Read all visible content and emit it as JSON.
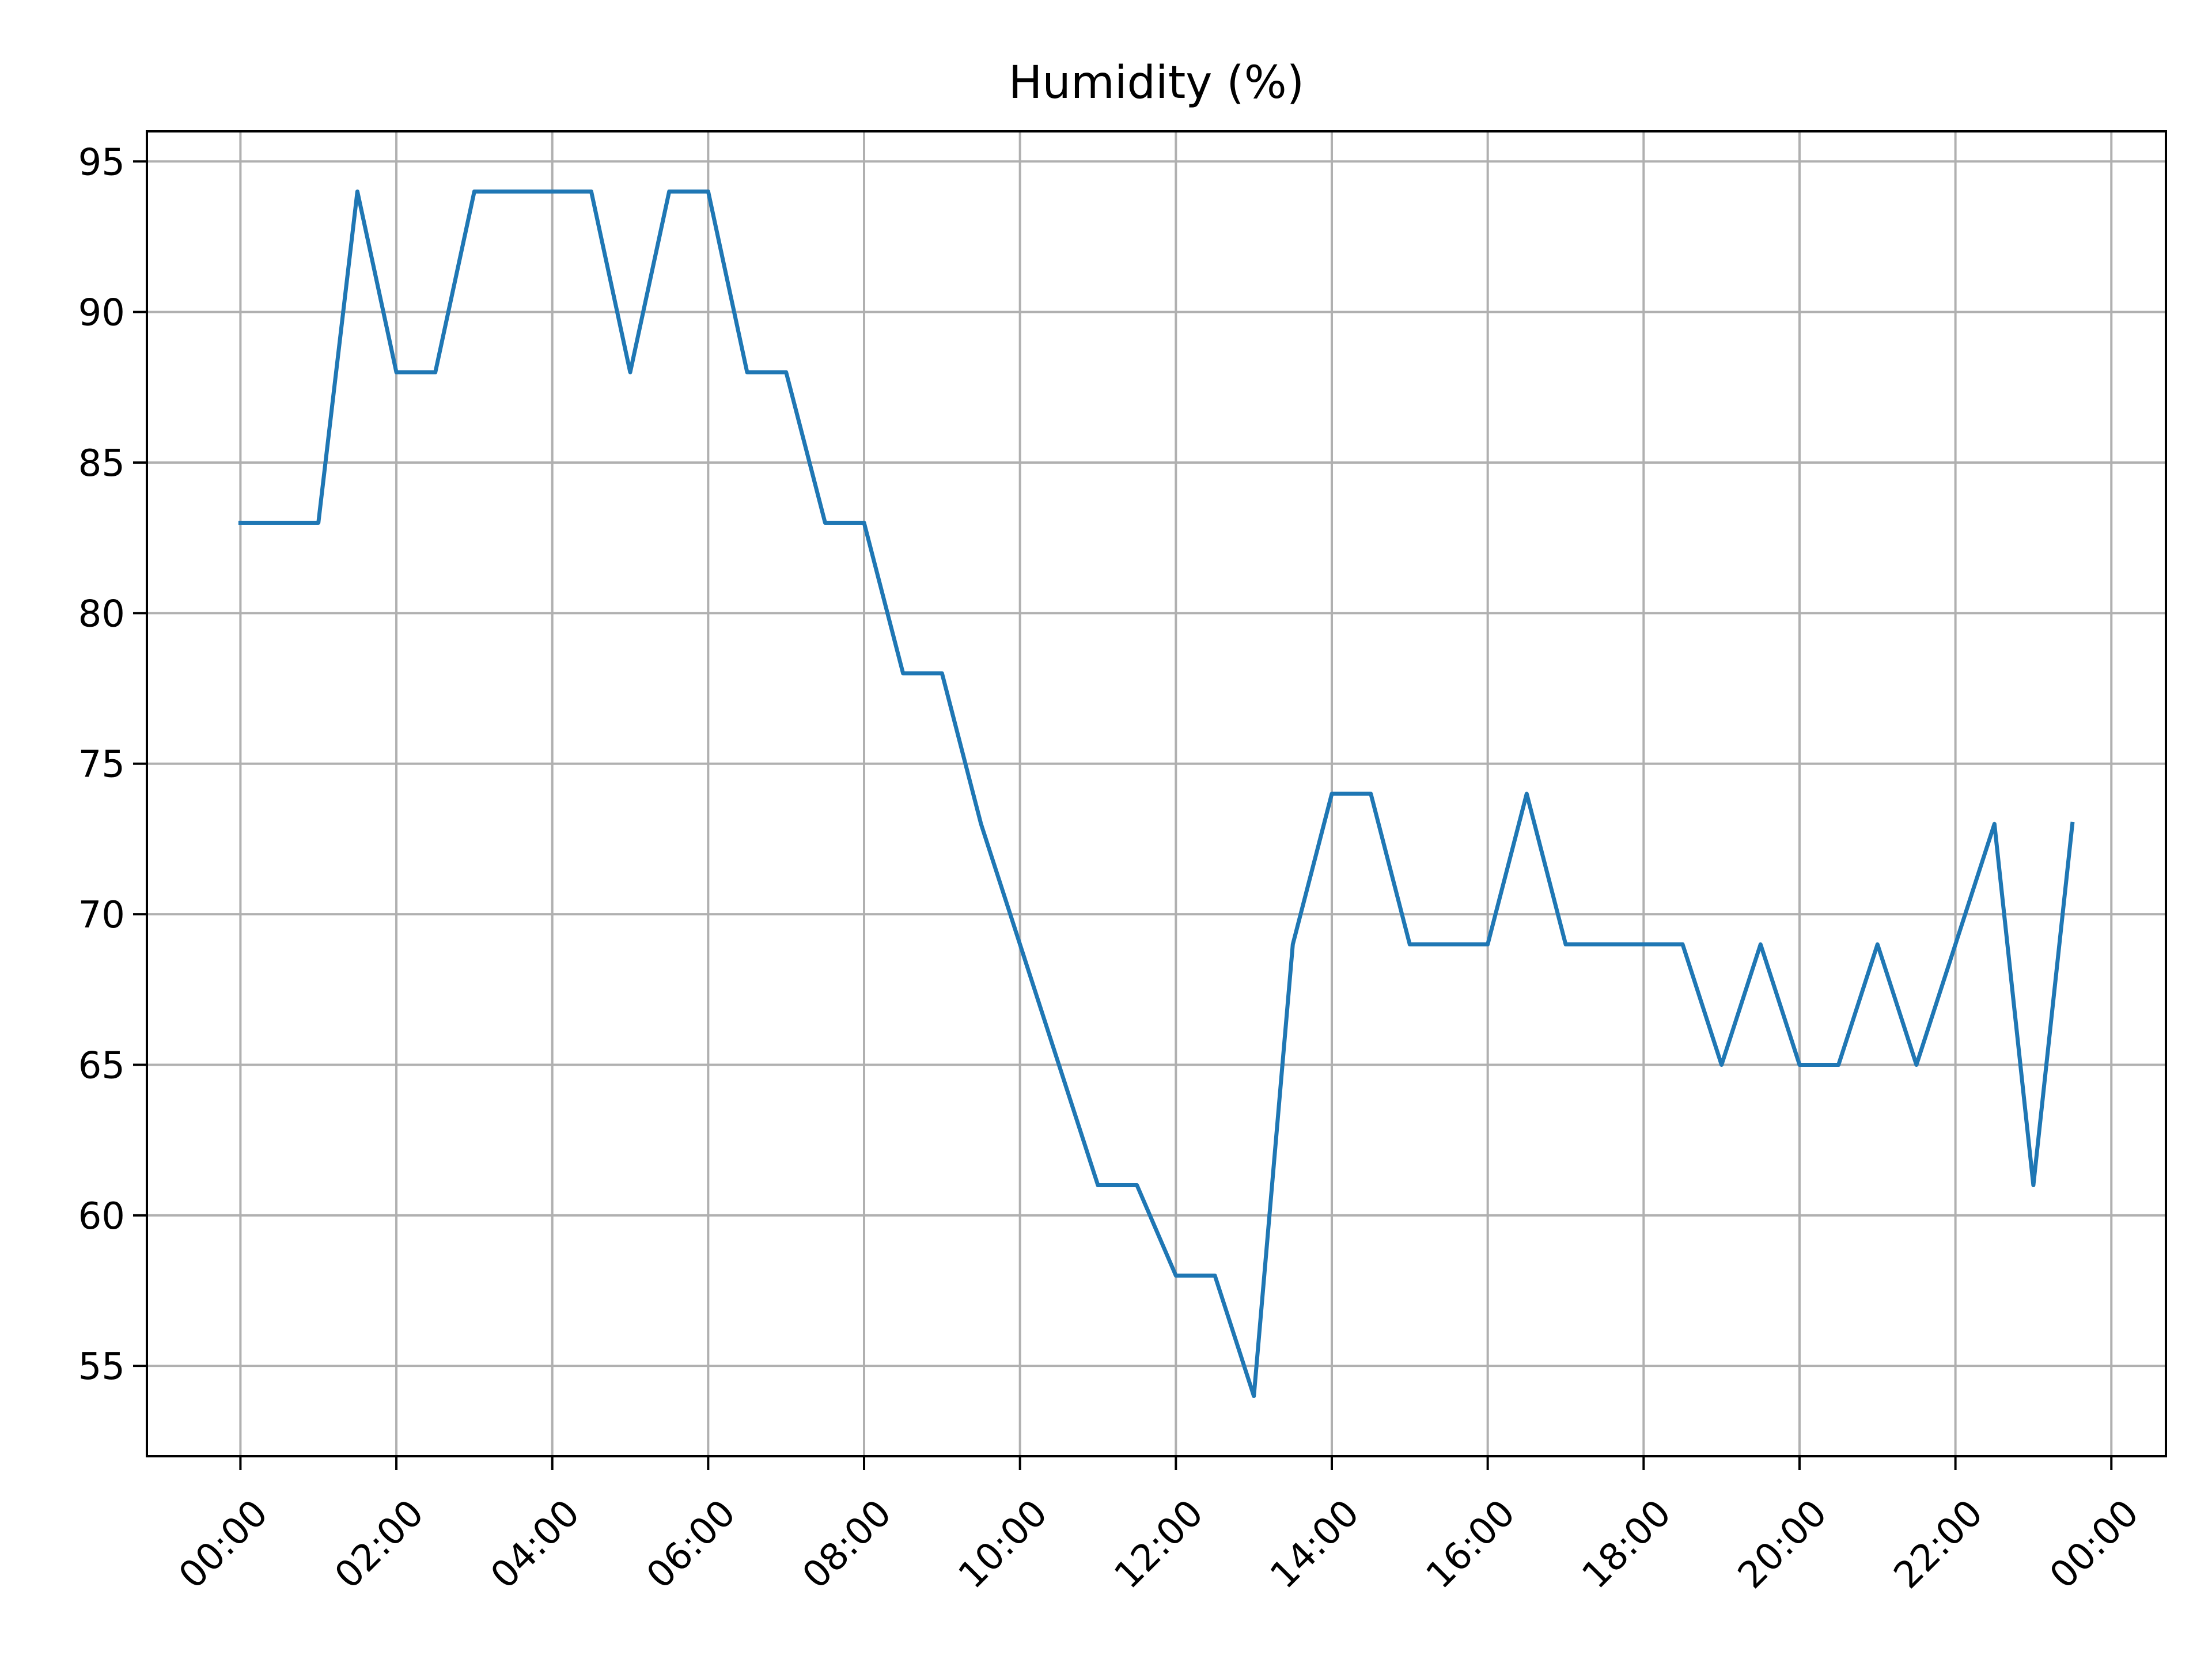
{
  "chart_data": {
    "type": "line",
    "title": "Humidity (%)",
    "xlabel": "",
    "ylabel": "",
    "x_unit": "hours",
    "xlim": [
      -1.2,
      24.7
    ],
    "ylim": [
      52,
      96
    ],
    "grid": true,
    "legend": "none",
    "x_ticks": [
      0,
      2,
      4,
      6,
      8,
      10,
      12,
      14,
      16,
      18,
      20,
      22,
      24
    ],
    "x_tick_labels": [
      "00:00",
      "02:00",
      "04:00",
      "06:00",
      "08:00",
      "10:00",
      "12:00",
      "14:00",
      "16:00",
      "18:00",
      "20:00",
      "22:00",
      "00:00"
    ],
    "y_ticks": [
      55,
      60,
      65,
      70,
      75,
      80,
      85,
      90,
      95
    ],
    "y_tick_labels": [
      "55",
      "60",
      "65",
      "70",
      "75",
      "80",
      "85",
      "90",
      "95"
    ],
    "series": [
      {
        "color": "#1f77b4",
        "x": [
          0,
          0.5,
          1,
          1.5,
          2,
          2.5,
          3,
          3.5,
          4,
          4.5,
          5,
          5.5,
          6,
          6.5,
          7,
          7.5,
          8,
          8.5,
          9,
          9.5,
          10,
          10.5,
          11,
          11.5,
          12,
          12.5,
          13,
          13.5,
          14,
          14.5,
          15,
          15.5,
          16,
          16.5,
          17,
          17.5,
          18,
          18.5,
          19,
          19.5,
          20,
          20.5,
          21,
          21.5,
          22,
          22.5,
          23,
          23.5
        ],
        "values": [
          83,
          83,
          83,
          94,
          88,
          88,
          94,
          94,
          94,
          94,
          88,
          94,
          94,
          88,
          88,
          83,
          83,
          78,
          78,
          73,
          69,
          65,
          61,
          61,
          58,
          58,
          54,
          69,
          74,
          74,
          69,
          69,
          69,
          74,
          69,
          69,
          69,
          69,
          65,
          69,
          65,
          65,
          69,
          65,
          69,
          73,
          61,
          73
        ]
      }
    ]
  }
}
